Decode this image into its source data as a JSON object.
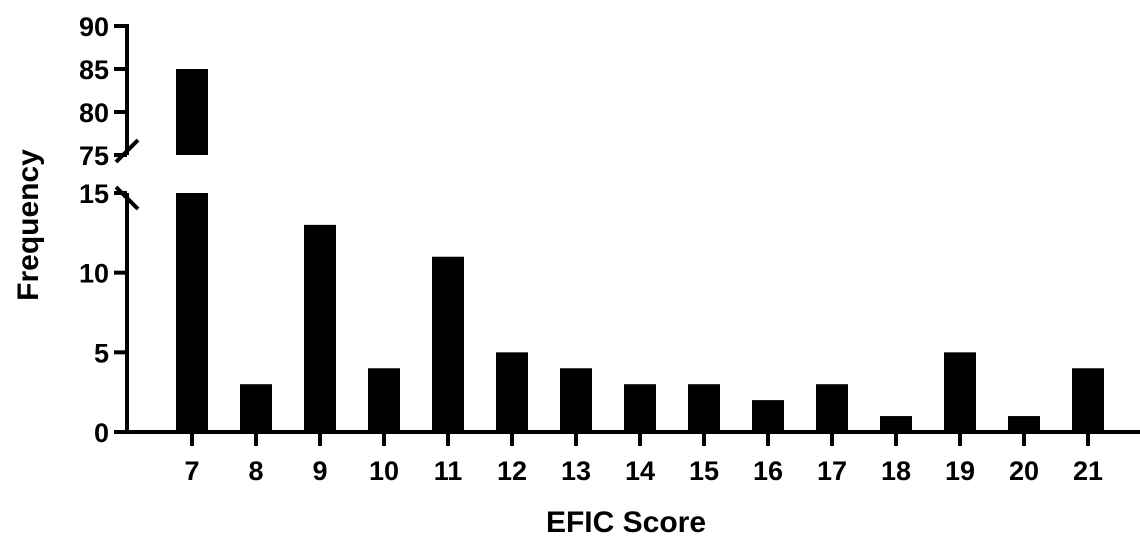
{
  "chart_data": {
    "type": "bar",
    "xlabel": "EFIC Score",
    "ylabel": "Frequency",
    "categories": [
      "7",
      "8",
      "9",
      "10",
      "11",
      "12",
      "13",
      "14",
      "15",
      "16",
      "17",
      "18",
      "19",
      "20",
      "21"
    ],
    "values": [
      85,
      3,
      13,
      4,
      11,
      5,
      4,
      3,
      3,
      2,
      3,
      1,
      5,
      1,
      4
    ],
    "y_axis_break": {
      "lower_range": [
        0,
        15
      ],
      "upper_range": [
        75,
        90
      ]
    },
    "lower_ticks": [
      0,
      5,
      10,
      15
    ],
    "upper_ticks": [
      75,
      80,
      85,
      90
    ],
    "grid": false,
    "bar_color": "#000000"
  }
}
